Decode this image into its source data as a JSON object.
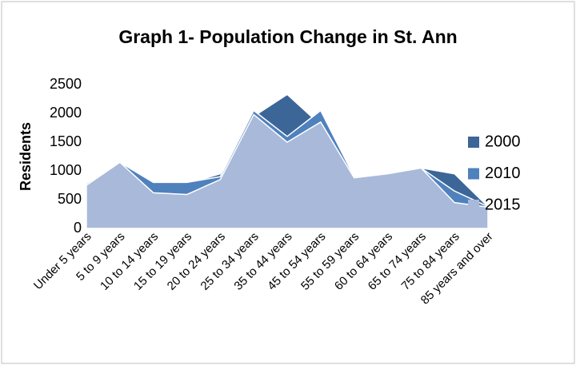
{
  "chart_data": {
    "type": "area",
    "title": "Graph 1- Population Change in St. Ann",
    "y_label": "Residents",
    "categories": [
      "Under 5 years",
      "5 to 9 years",
      "10 to 14 years",
      "15 to 19 years",
      "20 to 24 years",
      "25 to 34 years",
      "35 to 44 years",
      "45 to 54 years",
      "55 to 59 years",
      "60 to 64 years",
      "65 to 74 years",
      "75 to 84 years",
      "85 years and over"
    ],
    "series": [
      {
        "name": "2000",
        "color": "#3c6698",
        "values": [
          780,
          1150,
          780,
          780,
          950,
          1950,
          2330,
          1800,
          900,
          950,
          1050,
          950,
          380
        ]
      },
      {
        "name": "2010",
        "color": "#4f81bd",
        "values": [
          750,
          1150,
          800,
          800,
          900,
          2050,
          1600,
          2050,
          900,
          950,
          1050,
          650,
          380
        ]
      },
      {
        "name": "2015",
        "color": "#a9b9d9",
        "values": [
          750,
          1150,
          620,
          590,
          850,
          1980,
          1500,
          1850,
          880,
          950,
          1050,
          450,
          370
        ]
      }
    ],
    "ylim": [
      0,
      2500
    ],
    "yticks": [
      0,
      500,
      1000,
      1500,
      2000,
      2500
    ],
    "legend": "right"
  }
}
